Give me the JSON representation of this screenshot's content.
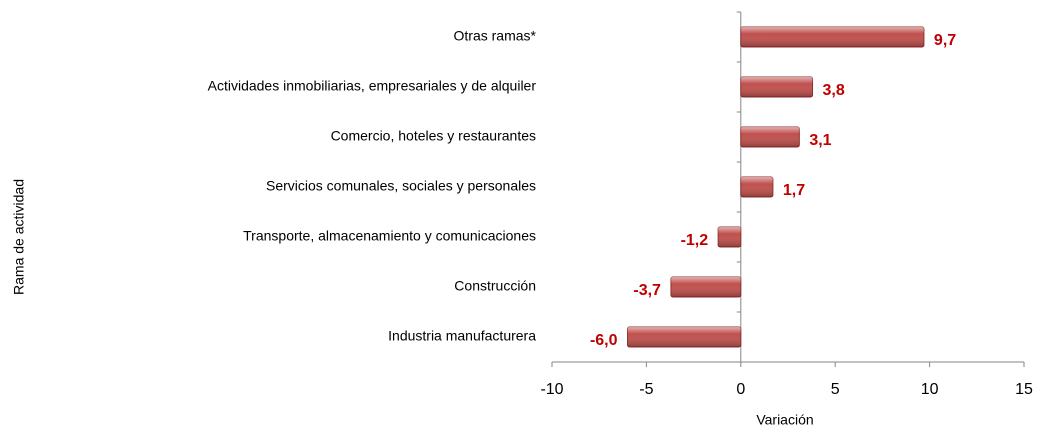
{
  "chart_data": {
    "type": "bar",
    "orientation": "horizontal",
    "x_label": "Variación",
    "y_label": "Rama de actividad",
    "categories": [
      "Otras ramas*",
      "Actividades inmobiliarias, empresariales y de alquiler",
      "Comercio, hoteles y restaurantes",
      "Servicios comunales, sociales y personales",
      "Transporte, almacenamiento y comunicaciones",
      "Construcción",
      "Industria manufacturera"
    ],
    "values": [
      9.7,
      3.8,
      3.1,
      1.7,
      -1.2,
      -3.7,
      -6.0
    ],
    "value_labels": [
      "9,7",
      "3,8",
      "3,1",
      "1,7",
      "-1,2",
      "-3,7",
      "-6,0"
    ],
    "color": "#c0504d",
    "xlim": [
      -10,
      15
    ],
    "xticks": [
      -10,
      -5,
      0,
      5,
      10,
      15
    ],
    "grid": false
  }
}
